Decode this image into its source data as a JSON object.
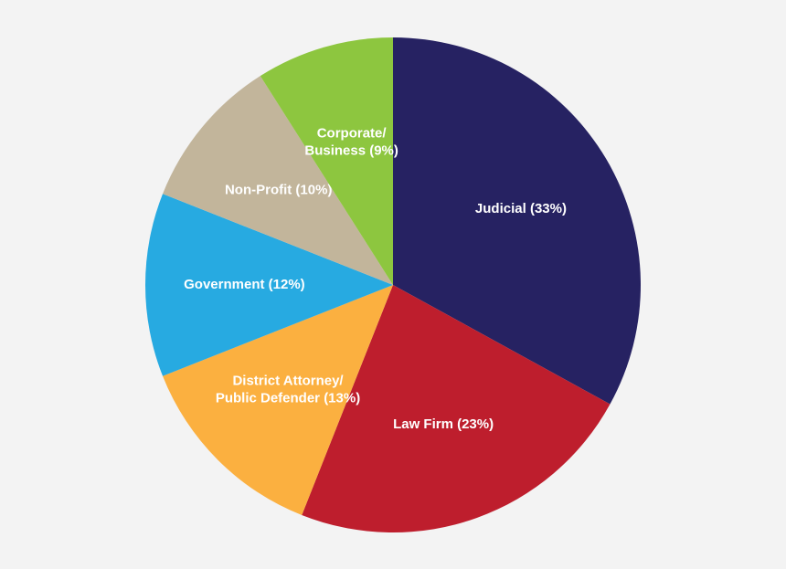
{
  "chart_data": {
    "type": "pie",
    "values": [
      33,
      23,
      13,
      12,
      10,
      9
    ],
    "value_labels": [
      [
        "Judicial (33%)"
      ],
      [
        "Law Firm (23%)"
      ],
      [
        "District Attorney/",
        "Public Defender (13%)"
      ],
      [
        "Government (12%)"
      ],
      [
        "Non-Profit (10%)"
      ],
      [
        "Corporate/",
        "Business (9%)"
      ]
    ],
    "colors": [
      "#262262",
      "#be1e2d",
      "#fbb040",
      "#27aae1",
      "#c2b59b",
      "#8dc63f"
    ]
  }
}
